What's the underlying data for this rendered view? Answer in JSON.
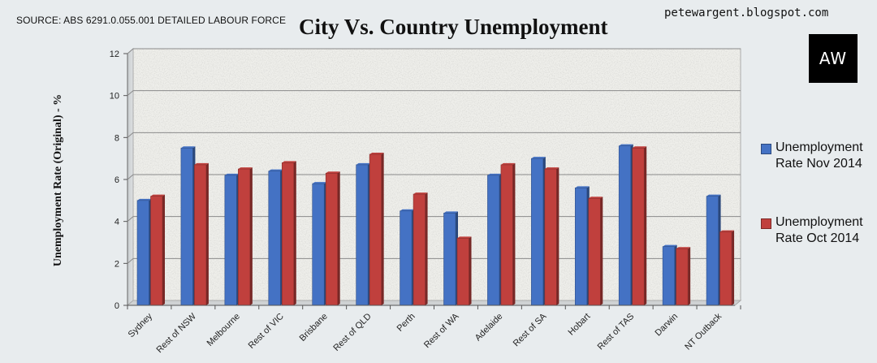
{
  "source": "SOURCE: ABS 6291.0.055.001 DETAILED LABOUR FORCE",
  "blog": "petewargent.blogspot.com",
  "logo_text": "AW",
  "chart_data": {
    "type": "bar",
    "title": "City Vs. Country Unemployment",
    "ylabel": "Unemployment Rate (Original) - %",
    "xlabel": "",
    "ylim": [
      0,
      12
    ],
    "yticks": [
      0,
      2,
      4,
      6,
      8,
      10,
      12
    ],
    "grid": true,
    "legend_position": "right",
    "categories": [
      "Sydney",
      "Rest of NSW",
      "Melbourne",
      "Rest of VIC",
      "Brisbane",
      "Rest of QLD",
      "Perth",
      "Rest of WA",
      "Adelaide",
      "Rest of SA",
      "Hobart",
      "Rest of TAS",
      "Darwin",
      "NT Outback"
    ],
    "series": [
      {
        "name": "Unemployment Rate Nov 2014",
        "name_lines": [
          "Unemployment",
          "Rate Nov 2014"
        ],
        "color": "#4472c4",
        "values": [
          5.0,
          7.5,
          6.2,
          6.4,
          5.8,
          6.7,
          4.5,
          4.4,
          6.2,
          7.0,
          5.6,
          7.6,
          2.8,
          5.2
        ]
      },
      {
        "name": "Unemployment Rate Oct 2014",
        "name_lines": [
          "Unemployment",
          "Rate Oct 2014"
        ],
        "color": "#c0403d",
        "values": [
          5.2,
          6.7,
          6.5,
          6.8,
          6.3,
          7.2,
          5.3,
          3.2,
          6.7,
          6.5,
          5.1,
          7.5,
          2.7,
          3.5
        ]
      }
    ]
  }
}
